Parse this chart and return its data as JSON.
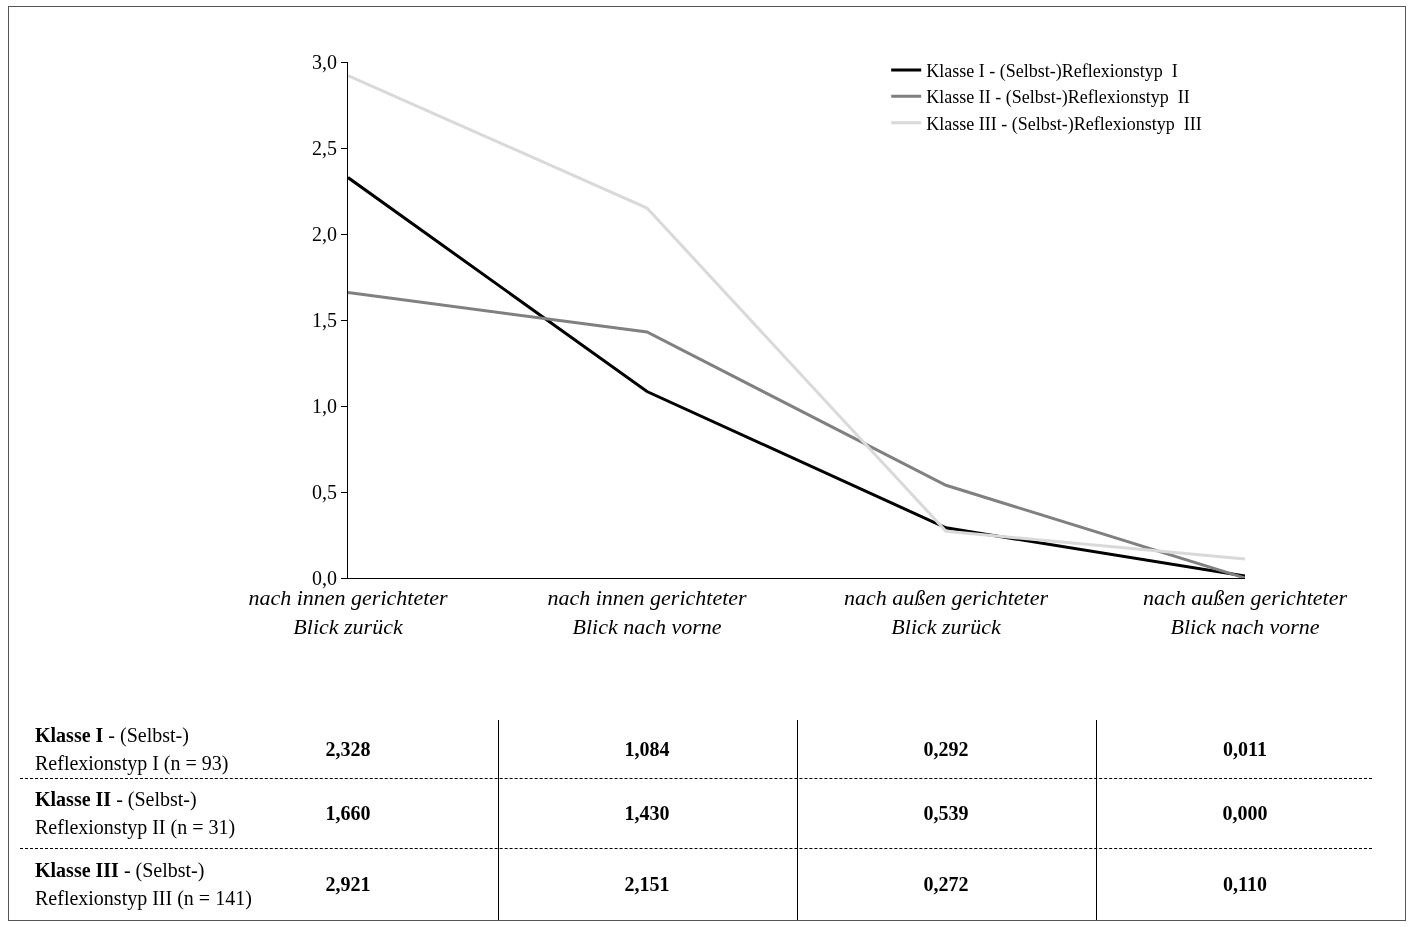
{
  "chart_data": {
    "type": "line",
    "categories": [
      "nach innen gerichteter\nBlick zurück",
      "nach innen gerichteter\nBlick nach vorne",
      "nach außen gerichteter\nBlick zurück",
      "nach außen gerichteter\nBlick nach vorne"
    ],
    "series": [
      {
        "name": "Klasse I - (Selbst-)Reflexionstyp  I",
        "color": "#000000",
        "values": [
          2.328,
          1.084,
          0.292,
          0.011
        ],
        "value_labels": [
          "2,328",
          "1,084",
          "0,292",
          "0,011"
        ]
      },
      {
        "name": "Klasse II - (Selbst-)Reflexionstyp  II",
        "color": "#808080",
        "values": [
          1.66,
          1.43,
          0.539,
          0.0
        ],
        "value_labels": [
          "1,660",
          "1,430",
          "0,539",
          "0,000"
        ]
      },
      {
        "name": "Klasse III - (Selbst-)Reflexionstyp  III",
        "color": "#d9d9d9",
        "values": [
          2.921,
          2.151,
          0.272,
          0.11
        ],
        "value_labels": [
          "2,921",
          "2,151",
          "0,272",
          "0,110"
        ]
      }
    ],
    "annotations": [
      "Klasse I - (Selbst-)\nReflexionstyp  I (n = 93)",
      "Klasse II - (Selbst-)\nReflexionstyp  II (n = 31)",
      "Klasse III - (Selbst-)\nReflexionstyp  III (n = 141)"
    ],
    "ylim": [
      0,
      3
    ],
    "yticks": [
      {
        "value": 0,
        "label": "0,0"
      },
      {
        "value": 0.5,
        "label": "0,5"
      },
      {
        "value": 1,
        "label": "1,0"
      },
      {
        "value": 1.5,
        "label": "1,5"
      },
      {
        "value": 2,
        "label": "2,0"
      },
      {
        "value": 2.5,
        "label": "2,5"
      },
      {
        "value": 3,
        "label": "3,0"
      }
    ],
    "grid": false,
    "legend": "top right",
    "marker": "none",
    "line_style": "solid"
  }
}
